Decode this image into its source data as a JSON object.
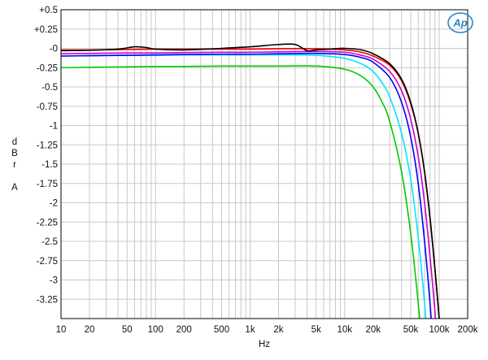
{
  "chart_data": {
    "type": "line",
    "xlabel": "Hz",
    "ylabel_letters": [
      "d",
      "B",
      "r",
      "",
      "A"
    ],
    "x_scale": "log",
    "xlim": [
      10,
      200000
    ],
    "ylim": [
      -3.5,
      0.5
    ],
    "grid": true,
    "x_ticks": [
      {
        "value": 10,
        "label": "10"
      },
      {
        "value": 20,
        "label": "20"
      },
      {
        "value": 50,
        "label": "50"
      },
      {
        "value": 100,
        "label": "100"
      },
      {
        "value": 200,
        "label": "200"
      },
      {
        "value": 500,
        "label": "500"
      },
      {
        "value": 1000,
        "label": "1k"
      },
      {
        "value": 2000,
        "label": "2k"
      },
      {
        "value": 5000,
        "label": "5k"
      },
      {
        "value": 10000,
        "label": "10k"
      },
      {
        "value": 20000,
        "label": "20k"
      },
      {
        "value": 50000,
        "label": "50k"
      },
      {
        "value": 100000,
        "label": "100k"
      },
      {
        "value": 200000,
        "label": "200k"
      }
    ],
    "y_ticks": [
      {
        "value": 0.5,
        "label": "+0.5"
      },
      {
        "value": 0.25,
        "label": "+0.25"
      },
      {
        "value": 0,
        "label": "-0"
      },
      {
        "value": -0.25,
        "label": "-0.25"
      },
      {
        "value": -0.5,
        "label": "-0.5"
      },
      {
        "value": -0.75,
        "label": "-0.75"
      },
      {
        "value": -1,
        "label": "-1"
      },
      {
        "value": -1.25,
        "label": "-1.25"
      },
      {
        "value": -1.5,
        "label": "-1.5"
      },
      {
        "value": -1.75,
        "label": "-1.75"
      },
      {
        "value": -2,
        "label": "-2"
      },
      {
        "value": -2.25,
        "label": "-2.25"
      },
      {
        "value": -2.5,
        "label": "-2.5"
      },
      {
        "value": -2.75,
        "label": "-2.75"
      },
      {
        "value": -3,
        "label": "-3"
      },
      {
        "value": -3.25,
        "label": "-3.25"
      }
    ],
    "series": [
      {
        "color": "#00cc00",
        "x": [
          10,
          20,
          50,
          100,
          200,
          500,
          1000,
          2000,
          5000,
          10000,
          15000,
          20000,
          25000,
          30000,
          40000,
          50000,
          60000,
          70000
        ],
        "y": [
          -0.25,
          -0.245,
          -0.24,
          -0.235,
          -0.235,
          -0.23,
          -0.23,
          -0.23,
          -0.23,
          -0.27,
          -0.36,
          -0.5,
          -0.7,
          -0.95,
          -1.6,
          -2.4,
          -3.3,
          -4.2
        ]
      },
      {
        "color": "#00e5ff",
        "x": [
          10,
          20,
          50,
          100,
          200,
          500,
          1000,
          2000,
          5000,
          10000,
          15000,
          20000,
          25000,
          30000,
          40000,
          50000,
          60000,
          70000,
          80000
        ],
        "y": [
          -0.1,
          -0.095,
          -0.09,
          -0.09,
          -0.085,
          -0.085,
          -0.085,
          -0.085,
          -0.09,
          -0.13,
          -0.2,
          -0.3,
          -0.45,
          -0.63,
          -1.1,
          -1.7,
          -2.45,
          -3.3,
          -4.2
        ]
      },
      {
        "color": "#0000ff",
        "x": [
          10,
          20,
          50,
          100,
          200,
          500,
          1000,
          2000,
          5000,
          10000,
          15000,
          20000,
          30000,
          40000,
          50000,
          60000,
          70000,
          80000,
          90000
        ],
        "y": [
          -0.1,
          -0.095,
          -0.09,
          -0.085,
          -0.08,
          -0.075,
          -0.075,
          -0.07,
          -0.065,
          -0.08,
          -0.12,
          -0.18,
          -0.38,
          -0.7,
          -1.15,
          -1.75,
          -2.5,
          -3.3,
          -4.2
        ]
      },
      {
        "color": "#cc00cc",
        "x": [
          10,
          20,
          50,
          100,
          200,
          500,
          1000,
          2000,
          5000,
          10000,
          15000,
          20000,
          30000,
          40000,
          50000,
          60000,
          70000,
          80000,
          90000,
          100000
        ],
        "y": [
          -0.07,
          -0.065,
          -0.06,
          -0.06,
          -0.055,
          -0.05,
          -0.05,
          -0.045,
          -0.04,
          -0.05,
          -0.09,
          -0.14,
          -0.3,
          -0.55,
          -0.92,
          -1.4,
          -2.0,
          -2.7,
          -3.4,
          -4.2
        ]
      },
      {
        "color": "#ee0000",
        "x": [
          10,
          20,
          50,
          100,
          200,
          500,
          1000,
          2000,
          5000,
          10000,
          15000,
          20000,
          30000,
          40000,
          50000,
          60000,
          70000,
          80000,
          90000,
          100000,
          110000
        ],
        "y": [
          -0.02,
          -0.02,
          -0.015,
          -0.01,
          -0.01,
          -0.01,
          -0.01,
          -0.005,
          -0.005,
          -0.02,
          -0.05,
          -0.1,
          -0.22,
          -0.42,
          -0.72,
          -1.1,
          -1.6,
          -2.2,
          -2.85,
          -3.5,
          -4.2
        ]
      },
      {
        "color": "#000000",
        "x": [
          10,
          20,
          40,
          60,
          80,
          100,
          200,
          500,
          1000,
          2000,
          3000,
          4000,
          5000,
          7000,
          10000,
          15000,
          20000,
          30000,
          40000,
          50000,
          60000,
          70000,
          80000,
          90000,
          100000,
          110000
        ],
        "y": [
          -0.03,
          -0.025,
          -0.01,
          0.02,
          0.01,
          -0.01,
          -0.02,
          0.0,
          0.02,
          0.05,
          0.05,
          -0.03,
          -0.02,
          -0.01,
          0.0,
          -0.02,
          -0.07,
          -0.2,
          -0.4,
          -0.7,
          -1.1,
          -1.6,
          -2.2,
          -2.85,
          -3.5,
          -4.2
        ]
      }
    ]
  },
  "logo": {
    "text": "Ap"
  }
}
